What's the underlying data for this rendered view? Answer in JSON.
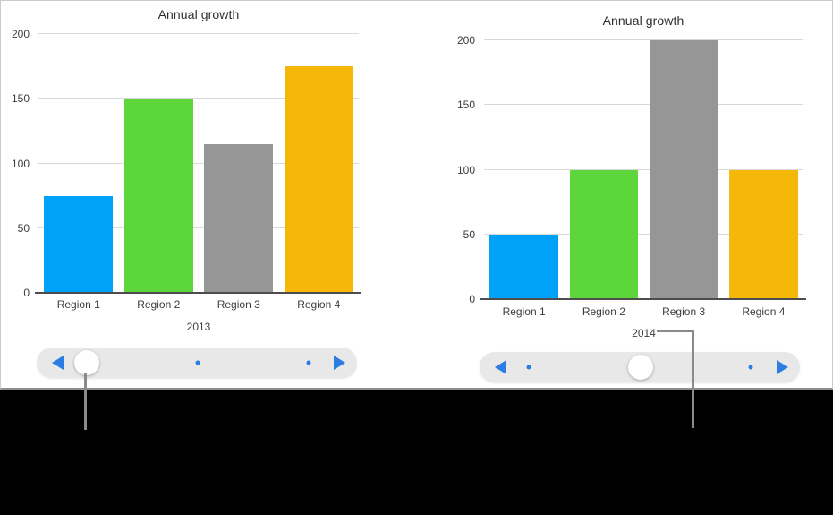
{
  "page": {
    "background": "#000000"
  },
  "panel": {
    "background": "#FFFFFF",
    "border_color": "#CBCBCB",
    "divider_color": "#8E8E8E"
  },
  "colors": {
    "accent_blue": "#2B7DE1",
    "grid": "#D9D9D9",
    "axis_line": "#4D4D4F",
    "text_primary": "#2E2E2E",
    "text_secondary": "#3C3C3C",
    "slider_track": "#E8E8E9",
    "scrubber_thumb": "#FFFFFF",
    "callout": "#8A8A8A",
    "bar_blue": "#00A2F8",
    "bar_green": "#5CD63A",
    "bar_gray": "#969696",
    "bar_amber": "#F5B708"
  },
  "chart_data": [
    {
      "type": "bar",
      "title": "Annual growth",
      "categories": [
        "Region 1",
        "Region 2",
        "Region 3",
        "Region 4"
      ],
      "values": [
        75,
        150,
        115,
        175
      ],
      "xlabel": "2013",
      "ylabel": "",
      "ylim": [
        0,
        200
      ],
      "yticks": [
        0,
        50,
        100,
        150,
        200
      ],
      "grid": true,
      "legend": false,
      "bar_colors": [
        "#00A2F8",
        "#5CD63A",
        "#969696",
        "#F5B708"
      ]
    },
    {
      "type": "bar",
      "title": "Annual growth",
      "categories": [
        "Region 1",
        "Region 2",
        "Region 3",
        "Region 4"
      ],
      "values": [
        50,
        100,
        200,
        100
      ],
      "xlabel": "2014",
      "ylabel": "",
      "ylim": [
        0,
        200
      ],
      "yticks": [
        0,
        50,
        100,
        150,
        200
      ],
      "grid": true,
      "legend": false,
      "bar_colors": [
        "#00A2F8",
        "#5CD63A",
        "#969696",
        "#F5B708"
      ]
    }
  ],
  "sliders": [
    {
      "name": "scrubber-2013",
      "markers": [
        {
          "type": "thumb",
          "pos": 0.156
        },
        {
          "type": "dot",
          "pos": 0.503
        },
        {
          "type": "dot",
          "pos": 0.849
        }
      ]
    },
    {
      "name": "scrubber-2014",
      "markers": [
        {
          "type": "dot",
          "pos": 0.154
        },
        {
          "type": "thumb",
          "pos": 0.503
        },
        {
          "type": "dot",
          "pos": 0.846
        }
      ]
    }
  ]
}
